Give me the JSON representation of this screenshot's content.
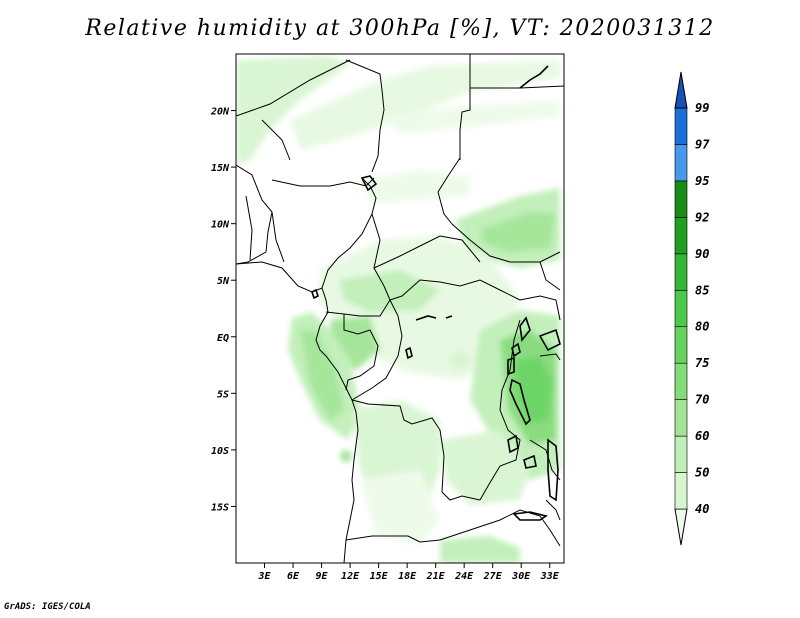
{
  "title": "Relative humidity at 300hPa [%], VT: 2020031312",
  "footer": "GrADS: IGES/COLA",
  "map": {
    "lon_range": [
      0,
      34.5
    ],
    "lat_range": [
      -20,
      25
    ],
    "lon_ticks": [
      {
        "value": 3,
        "label": "3E"
      },
      {
        "value": 6,
        "label": "6E"
      },
      {
        "value": 9,
        "label": "9E"
      },
      {
        "value": 12,
        "label": "12E"
      },
      {
        "value": 15,
        "label": "15E"
      },
      {
        "value": 18,
        "label": "18E"
      },
      {
        "value": 21,
        "label": "21E"
      },
      {
        "value": 24,
        "label": "24E"
      },
      {
        "value": 27,
        "label": "27E"
      },
      {
        "value": 30,
        "label": "30E"
      },
      {
        "value": 33,
        "label": "33E"
      }
    ],
    "lat_ticks": [
      {
        "value": 20,
        "label": "20N"
      },
      {
        "value": 15,
        "label": "15N"
      },
      {
        "value": 10,
        "label": "10N"
      },
      {
        "value": 5,
        "label": "5N"
      },
      {
        "value": 0,
        "label": "EQ"
      },
      {
        "value": -5,
        "label": "5S"
      },
      {
        "value": -10,
        "label": "10S"
      },
      {
        "value": -15,
        "label": "15S"
      }
    ]
  },
  "colorbar": {
    "levels": [
      "40",
      "50",
      "60",
      "70",
      "75",
      "80",
      "85",
      "90",
      "92",
      "95",
      "97",
      "99"
    ],
    "colors": [
      "#eefbea",
      "#d8f5d2",
      "#c0efb8",
      "#a2e596",
      "#84db79",
      "#66d35e",
      "#4cc84a",
      "#34b635",
      "#1fa01f",
      "#188c16",
      "#4898ec",
      "#1c6ed8",
      "#1552b4"
    ]
  },
  "colors": {
    "frame": "#000000",
    "borders": "#000000",
    "background": "#ffffff"
  }
}
